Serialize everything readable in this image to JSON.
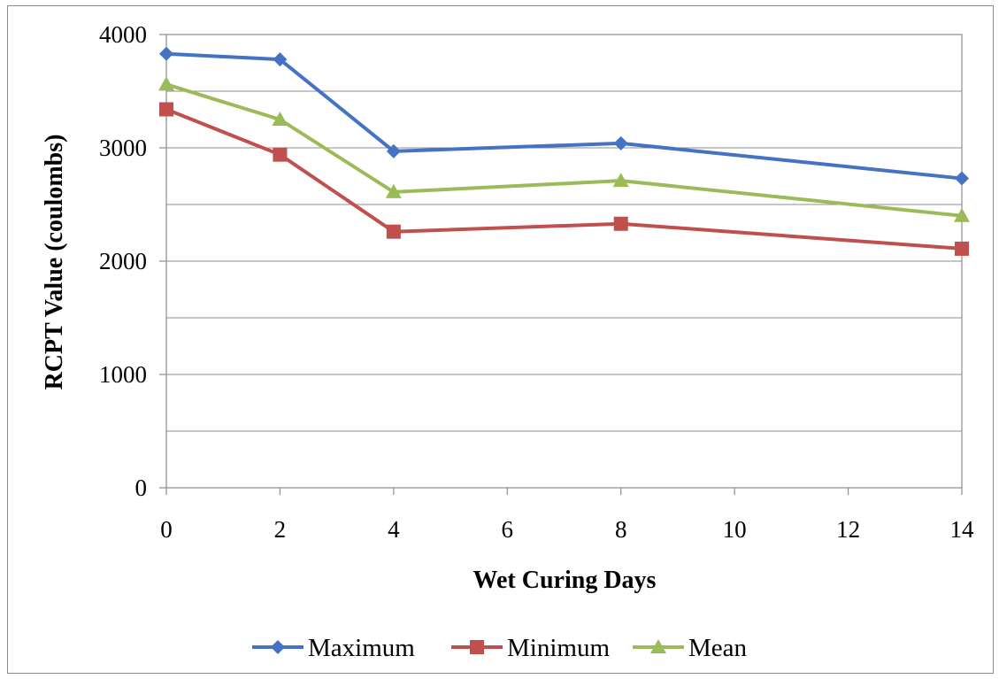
{
  "chart_data": {
    "type": "line",
    "xlabel": "Wet Curing Days",
    "ylabel": "RCPT Value (coulombs)",
    "xlim": [
      0,
      14
    ],
    "ylim": [
      0,
      4000
    ],
    "x_ticks": [
      0,
      2,
      4,
      6,
      8,
      10,
      12,
      14
    ],
    "y_ticks": [
      0,
      1000,
      2000,
      3000,
      4000
    ],
    "grid": "horizontal",
    "legend_position": "bottom",
    "x": [
      0,
      2,
      4,
      8,
      14
    ],
    "series": [
      {
        "name": "Maximum",
        "values": [
          3830,
          3780,
          2970,
          3040,
          2730
        ],
        "color": "#4472C4",
        "marker": "diamond"
      },
      {
        "name": "Minimum",
        "values": [
          3340,
          2940,
          2260,
          2330,
          2110
        ],
        "color": "#C0504D",
        "marker": "square"
      },
      {
        "name": "Mean",
        "values": [
          3560,
          3250,
          2610,
          2710,
          2400
        ],
        "color": "#9BBB59",
        "marker": "triangle"
      }
    ]
  }
}
